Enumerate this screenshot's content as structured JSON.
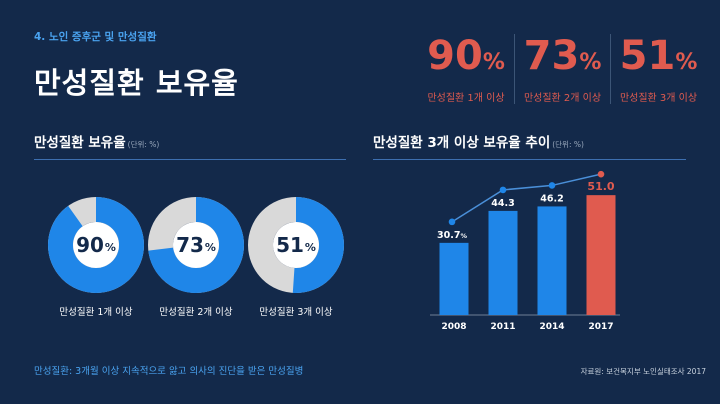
{
  "header": {
    "section_label": "4. 노인 증후군 및 만성질환",
    "title": "만성질환 보유율"
  },
  "summary_stats": [
    {
      "value": "90",
      "unit": "%",
      "label": "만성질환 1개 이상"
    },
    {
      "value": "73",
      "unit": "%",
      "label": "만성질환 2개 이상"
    },
    {
      "value": "51",
      "unit": "%",
      "label": "만성질환 3개 이상"
    }
  ],
  "left_panel": {
    "title": "만성질환 보유율",
    "unit_note": "(단위: %)"
  },
  "right_panel": {
    "title": "만성질환 3개 이상 보유율 추이",
    "unit_note": "(단위: %)"
  },
  "footnote": "만성질환: 3개월 이상 지속적으로 앓고 의사의 진단을 받은 만성질병",
  "source": "자료원: 보건복지부 노인실태조사 2017",
  "colors": {
    "background": "#13294a",
    "accent_blue": "#1f86e8",
    "accent_red": "#e05b4f",
    "ring_gray": "#d9d9d9",
    "line_blue": "#4a8fd8"
  },
  "chart_data": [
    {
      "type": "pie",
      "style": "donut",
      "items": [
        {
          "label": "만성질환 1개 이상",
          "value": 90,
          "display": "90",
          "unit": "%"
        },
        {
          "label": "만성질환 2개 이상",
          "value": 73,
          "display": "73",
          "unit": "%"
        },
        {
          "label": "만성질환 3개 이상",
          "value": 51,
          "display": "51",
          "unit": "%"
        }
      ]
    },
    {
      "type": "bar",
      "categories": [
        "2008",
        "2011",
        "2014",
        "2017"
      ],
      "values": [
        30.7,
        44.3,
        46.2,
        51.0
      ],
      "value_labels": [
        "30.7",
        "44.3",
        "46.2",
        "51.0"
      ],
      "first_label_unit": "%",
      "highlight_index": 3,
      "overlay_line": true,
      "ylim": [
        0,
        60
      ]
    }
  ]
}
